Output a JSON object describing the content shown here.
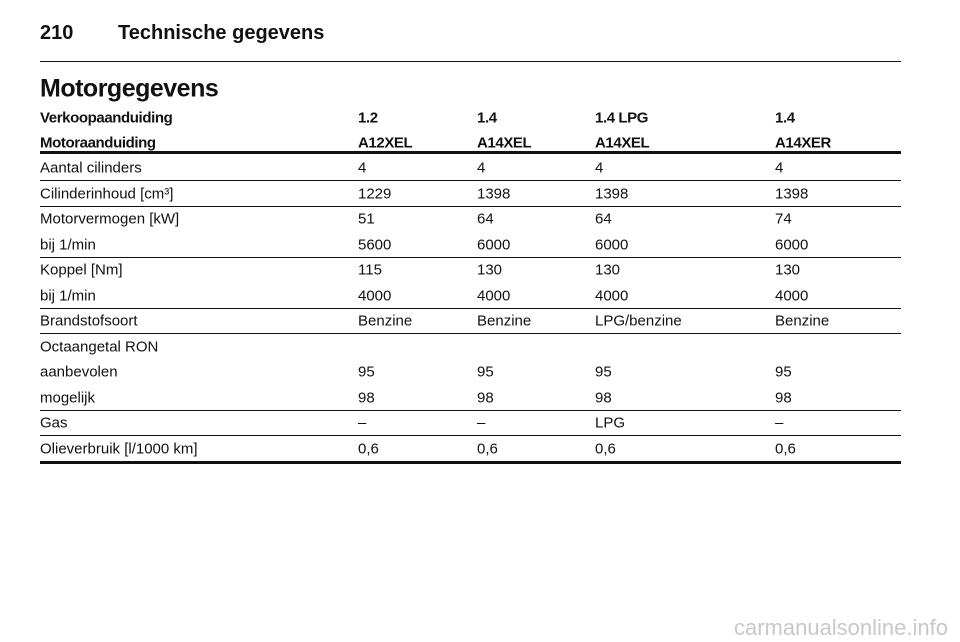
{
  "header": {
    "page_number": "210",
    "title": "Technische gegevens"
  },
  "section_title": "Motorgegevens",
  "table": {
    "header_rows": [
      [
        "Verkoopaanduiding",
        "1.2",
        "1.4",
        "1.4 LPG",
        "1.4"
      ],
      [
        "Motoraanduiding",
        "A12XEL",
        "A14XEL",
        "A14XEL",
        "A14XER"
      ]
    ],
    "groups": [
      [
        [
          "Aantal cilinders",
          "4",
          "4",
          "4",
          "4"
        ]
      ],
      [
        [
          "Cilinderinhoud [cm³]",
          "1229",
          "1398",
          "1398",
          "1398"
        ]
      ],
      [
        [
          "Motorvermogen [kW]",
          "51",
          "64",
          "64",
          "74"
        ],
        [
          "bij 1/min",
          "5600",
          "6000",
          "6000",
          "6000"
        ]
      ],
      [
        [
          "Koppel [Nm]",
          "115",
          "130",
          "130",
          "130"
        ],
        [
          "bij 1/min",
          "4000",
          "4000",
          "4000",
          "4000"
        ]
      ],
      [
        [
          "Brandstofsoort",
          "Benzine",
          "Benzine",
          "LPG/benzine",
          "Benzine"
        ]
      ],
      [
        [
          "Octaangetal RON"
        ],
        [
          "aanbevolen",
          "95",
          "95",
          "95",
          "95"
        ],
        [
          "mogelijk",
          "98",
          "98",
          "98",
          "98"
        ]
      ],
      [
        [
          "Gas",
          "–",
          "–",
          "LPG",
          "–"
        ]
      ],
      [
        [
          "Olieverbruik [l/1000 km]",
          "0,6",
          "0,6",
          "0,6",
          "0,6"
        ]
      ]
    ]
  },
  "watermark": "carmanualsonline.info"
}
